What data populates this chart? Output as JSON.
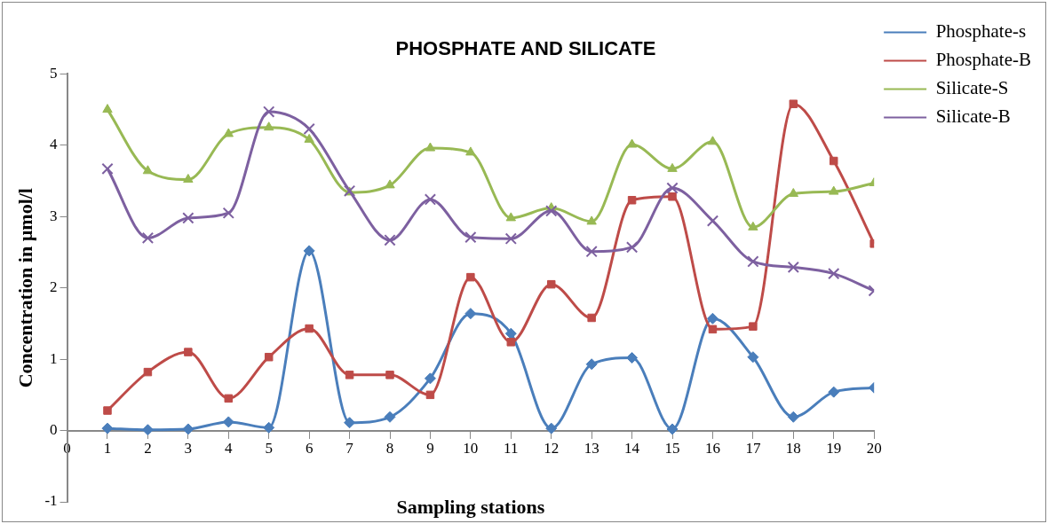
{
  "chart_data": {
    "type": "line",
    "title": "PHOSPHATE AND SILICATE",
    "xlabel": "Sampling stations",
    "ylabel": "Concentration in µmol/l",
    "x": [
      1,
      2,
      3,
      4,
      5,
      6,
      7,
      8,
      9,
      10,
      11,
      12,
      13,
      14,
      15,
      16,
      17,
      18,
      19,
      20
    ],
    "xlim": [
      0,
      20
    ],
    "xticks": [
      0,
      1,
      2,
      3,
      4,
      5,
      6,
      7,
      8,
      9,
      10,
      11,
      12,
      13,
      14,
      15,
      16,
      17,
      18,
      19,
      20
    ],
    "ylim": [
      -1,
      5
    ],
    "yticks": [
      -1,
      0,
      1,
      2,
      3,
      4,
      5
    ],
    "grid": false,
    "legend": "top right",
    "series": [
      {
        "name": "Phosphate-s",
        "color": "#4a7ebb",
        "marker": "diamond",
        "values": [
          0.03,
          0.01,
          0.02,
          0.12,
          0.04,
          2.52,
          0.11,
          0.19,
          0.73,
          1.64,
          1.36,
          0.03,
          0.93,
          1.02,
          0.02,
          1.57,
          1.03,
          0.19,
          0.54,
          0.6
        ]
      },
      {
        "name": "Phosphate-B",
        "color": "#be4b48",
        "marker": "square",
        "values": [
          0.28,
          0.82,
          1.1,
          0.45,
          1.03,
          1.43,
          0.78,
          0.78,
          0.5,
          2.15,
          1.24,
          2.05,
          1.58,
          3.23,
          3.28,
          1.42,
          1.46,
          4.58,
          3.78,
          2.62
        ]
      },
      {
        "name": "Silicate-S",
        "color": "#98b954",
        "marker": "triangle",
        "values": [
          4.5,
          3.64,
          3.52,
          4.16,
          4.25,
          4.08,
          3.34,
          3.44,
          3.96,
          3.9,
          2.98,
          3.12,
          2.93,
          4.01,
          3.67,
          4.05,
          2.85,
          3.32,
          3.35,
          3.47
        ]
      },
      {
        "name": "Silicate-B",
        "color": "#7d60a0",
        "marker": "cross",
        "values": [
          3.67,
          2.7,
          2.98,
          3.05,
          4.47,
          4.23,
          3.36,
          2.67,
          3.24,
          2.71,
          2.69,
          3.08,
          2.51,
          2.57,
          3.4,
          2.94,
          2.37,
          2.29,
          2.2,
          1.96
        ]
      }
    ]
  }
}
